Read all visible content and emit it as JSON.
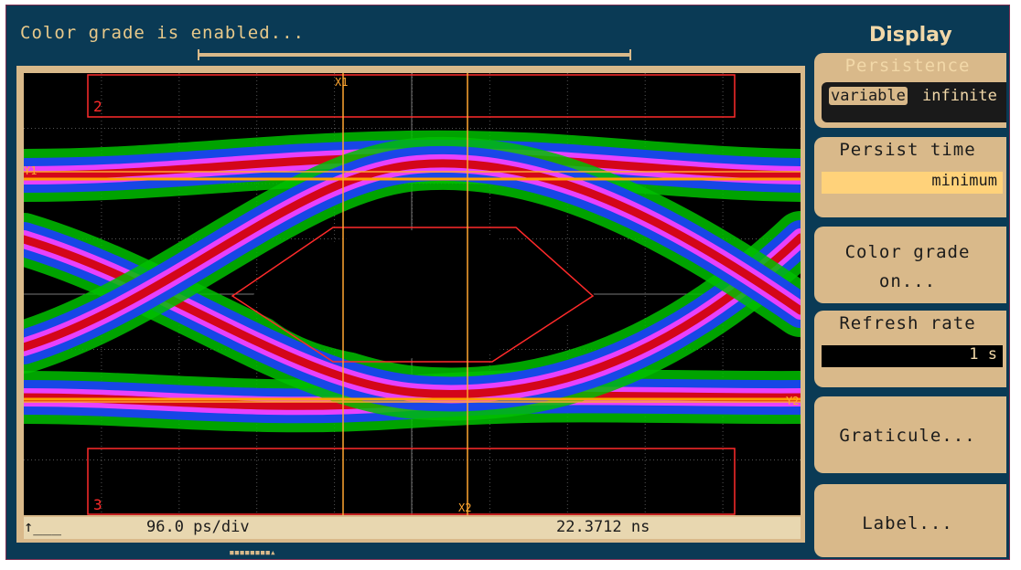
{
  "status": {
    "message": "Color grade is enabled..."
  },
  "menu": {
    "title": "Display",
    "persistence": {
      "label": "Persistence",
      "options": [
        "variable",
        "infinite"
      ],
      "selected": "variable"
    },
    "persist_time": {
      "label": "Persist time",
      "value": "minimum"
    },
    "color_grade": {
      "label_line1": "Color grade",
      "label_line2": "on..."
    },
    "refresh_rate": {
      "label": "Refresh rate",
      "value": "1 s"
    },
    "graticule": {
      "label": "Graticule..."
    },
    "label": {
      "label": "Label..."
    }
  },
  "screen": {
    "markers": {
      "x1": "X1",
      "x2": "X2",
      "y1": "Y1",
      "y2": "Y2"
    },
    "mask_regions": {
      "top": "2",
      "bottom": "3"
    },
    "horizontal_scale": "96.0 ps/div",
    "position": "22.3712 ns",
    "trigger_symbol": "↑___"
  },
  "colors": {
    "background": "#0a3a55",
    "screen": "#000000",
    "mask": "#ff2a2a",
    "marker": "#ffa630",
    "cold": "#00c000",
    "cool": "#1a3cff",
    "warm": "#ff40ff",
    "hot": "#d00000",
    "hottest": "#ffa000"
  }
}
